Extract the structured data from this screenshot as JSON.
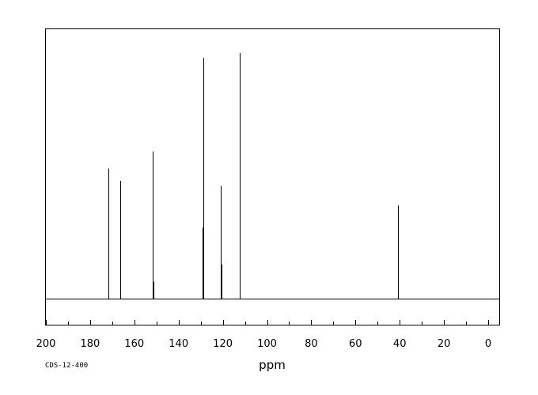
{
  "chart_data": {
    "type": "line",
    "xlabel": "ppm",
    "ylabel": "",
    "xlim": [
      200,
      -5
    ],
    "x_reversed": true,
    "ylim": [
      -0.1,
      1.0
    ],
    "grid": false,
    "x_ticks": [
      200,
      180,
      160,
      140,
      120,
      100,
      80,
      60,
      40,
      20,
      0
    ],
    "x_minor_step": 10,
    "series": [
      {
        "peaks": [
          {
            "ppm": 171.9,
            "intensity": 0.53
          },
          {
            "ppm": 171.6,
            "intensity": 0.38
          },
          {
            "ppm": 166.5,
            "intensity": 0.48
          },
          {
            "ppm": 151.6,
            "intensity": 0.6
          },
          {
            "ppm": 151.3,
            "intensity": 0.07
          },
          {
            "ppm": 128.8,
            "intensity": 0.98
          },
          {
            "ppm": 129.1,
            "intensity": 0.29
          },
          {
            "ppm": 120.8,
            "intensity": 0.46
          },
          {
            "ppm": 120.4,
            "intensity": 0.14
          },
          {
            "ppm": 112.2,
            "intensity": 1.0
          },
          {
            "ppm": 112.5,
            "intensity": 0.02
          },
          {
            "ppm": 40.9,
            "intensity": 0.38
          }
        ]
      }
    ]
  },
  "footer": {
    "code": "CDS-12-400"
  }
}
